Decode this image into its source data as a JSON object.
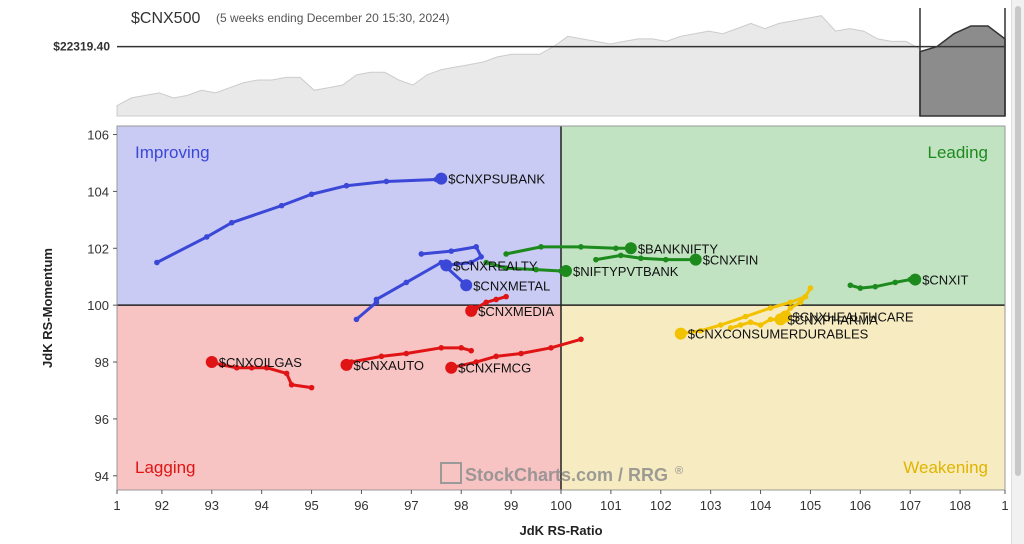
{
  "header": {
    "symbol": "$CNX500",
    "subtitle": "(5 weeks ending December 20 15:30, 2024)",
    "price_label": "$22319.40"
  },
  "quadrants": {
    "improving": "Improving",
    "leading": "Leading",
    "lagging": "Lagging",
    "weakening": "Weakening"
  },
  "watermark": "StockCharts.com / RRG",
  "watermark_mark": "®",
  "colors": {
    "improving_bg": "#c9cbf4",
    "leading_bg": "#c2e3c2",
    "lagging_bg": "#f7c3c3",
    "weakening_bg": "#f7ecc1",
    "improving_text": "#3b47d6",
    "leading_text": "#1c8a1c",
    "lagging_text": "#e01414",
    "weakening_text": "#e0b400"
  },
  "chart_data": {
    "type": "scatter",
    "xlabel": "JdK RS-Ratio",
    "ylabel": "JdK RS-Momentum",
    "xlim": [
      91.1,
      108.9
    ],
    "ylim": [
      93.5,
      106.3
    ],
    "x_ticks": [
      "1",
      "92",
      "93",
      "94",
      "95",
      "96",
      "97",
      "98",
      "99",
      "100",
      "101",
      "102",
      "103",
      "104",
      "105",
      "106",
      "107",
      "108",
      "1"
    ],
    "y_ticks": [
      "94",
      "96",
      "98",
      "100",
      "102",
      "104",
      "106"
    ],
    "series": [
      {
        "name": "$CNXPSUBANK",
        "color": "#3b47d6",
        "x": [
          91.9,
          92.9,
          93.4,
          94.4,
          95.0,
          95.7,
          96.5,
          97.5,
          97.6
        ],
        "y": [
          101.5,
          102.4,
          102.9,
          103.5,
          103.9,
          104.2,
          104.35,
          104.42,
          104.45
        ]
      },
      {
        "name": "$CNXREALTY",
        "color": "#3b47d6",
        "x": [
          97.2,
          97.8,
          98.3,
          98.4,
          98.2,
          97.7
        ],
        "y": [
          101.8,
          101.9,
          102.05,
          101.7,
          101.5,
          101.4
        ]
      },
      {
        "name": "$CNXMETAL",
        "color": "#3b47d6",
        "x": [
          95.9,
          96.3,
          96.3,
          96.9,
          97.6,
          98.1
        ],
        "y": [
          99.5,
          100.1,
          100.2,
          100.8,
          101.5,
          100.7
        ]
      },
      {
        "name": "$BANKNIFTY",
        "color": "#1c8a1c",
        "x": [
          98.9,
          99.6,
          100.4,
          101.1,
          101.4
        ],
        "y": [
          101.8,
          102.05,
          102.05,
          102.0,
          102.0
        ]
      },
      {
        "name": "$CNXFIN",
        "color": "#1c8a1c",
        "x": [
          100.7,
          101.2,
          101.6,
          102.1,
          102.7
        ],
        "y": [
          101.6,
          101.75,
          101.65,
          101.6,
          101.6
        ]
      },
      {
        "name": "$NIFTYPVTBANK",
        "color": "#1c8a1c",
        "x": [
          98.5,
          98.9,
          99.5,
          100.0,
          100.1
        ],
        "y": [
          101.5,
          101.3,
          101.25,
          101.2,
          101.2
        ]
      },
      {
        "name": "$CNXIT",
        "color": "#1c8a1c",
        "x": [
          105.8,
          106.0,
          106.3,
          106.7,
          107.0,
          107.1
        ],
        "y": [
          100.7,
          100.6,
          100.65,
          100.8,
          100.9,
          100.9
        ]
      },
      {
        "name": "$CNXMEDIA",
        "color": "#e01414",
        "x": [
          98.9,
          98.7,
          98.5,
          98.3,
          98.2
        ],
        "y": [
          100.3,
          100.2,
          100.1,
          99.9,
          99.8
        ]
      },
      {
        "name": "$CNXOILGAS",
        "color": "#e01414",
        "x": [
          95.0,
          94.6,
          94.5,
          94.1,
          93.8,
          93.5,
          93.2,
          93.0
        ],
        "y": [
          97.1,
          97.2,
          97.6,
          97.8,
          97.8,
          97.8,
          97.9,
          98.0
        ]
      },
      {
        "name": "$CNXAUTO",
        "color": "#e01414",
        "x": [
          98.2,
          98.0,
          97.6,
          96.9,
          96.4,
          95.8,
          95.7
        ],
        "y": [
          98.4,
          98.5,
          98.5,
          98.3,
          98.2,
          98.0,
          97.9
        ]
      },
      {
        "name": "$CNXFMCG",
        "color": "#e01414",
        "x": [
          100.4,
          99.8,
          99.2,
          98.7,
          98.3,
          97.8
        ],
        "y": [
          98.8,
          98.5,
          98.3,
          98.2,
          98.0,
          97.8
        ]
      },
      {
        "name": "$CNXHEALTHCARE",
        "color": "#f2c200",
        "x": [
          105.0,
          104.9,
          104.8,
          104.6,
          104.5,
          104.5
        ],
        "y": [
          100.6,
          100.3,
          100.1,
          99.9,
          99.7,
          99.6
        ]
      },
      {
        "name": "$CNXPHARMA",
        "color": "#f2c200",
        "x": [
          103.4,
          103.6,
          103.8,
          104.0,
          104.2,
          104.4
        ],
        "y": [
          99.2,
          99.3,
          99.4,
          99.3,
          99.5,
          99.5
        ]
      },
      {
        "name": "$CNXCONSUMERDURABLES",
        "color": "#f2c200",
        "x": [
          104.9,
          104.6,
          104.2,
          103.7,
          103.2,
          102.8,
          102.4
        ],
        "y": [
          100.3,
          100.1,
          99.9,
          99.6,
          99.3,
          99.1,
          99.0
        ]
      }
    ],
    "price_panel": {
      "series": [
        22.0,
        22.3,
        22.4,
        22.5,
        22.3,
        22.4,
        22.6,
        22.5,
        22.7,
        22.9,
        23.0,
        23.0,
        23.1,
        23.1,
        22.6,
        22.7,
        22.8,
        23.2,
        23.3,
        23.3,
        23.0,
        22.8,
        23.2,
        23.4,
        23.5,
        23.6,
        23.7,
        23.9,
        24.0,
        24.0,
        24.0,
        24.3,
        24.7,
        24.6,
        24.5,
        24.4,
        24.5,
        24.6,
        24.6,
        24.5,
        24.7,
        24.8,
        24.9,
        24.8,
        25.0,
        25.2,
        25.0,
        25.2,
        25.3,
        25.4,
        25.5,
        24.9,
        25.0,
        24.9,
        24.6,
        24.5,
        24.5,
        24.2
      ],
      "highlight_series": [
        24.1,
        24.3,
        24.8,
        25.1,
        25.1,
        24.6
      ],
      "reference": 24.3
    }
  }
}
